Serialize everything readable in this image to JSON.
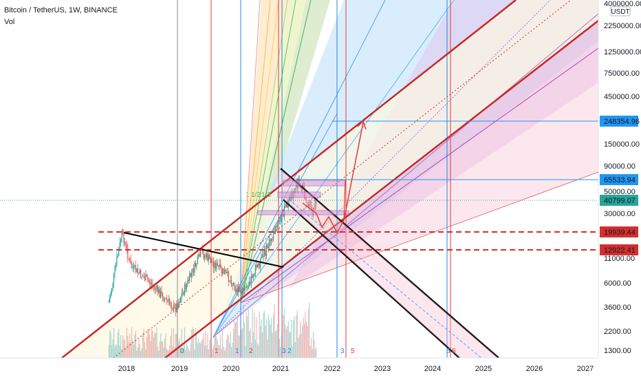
{
  "header": {
    "symbol_title": "Bitcoin / TetherUS, 1W, BINANCE",
    "indicator": "Vol"
  },
  "price_axis": {
    "currency_badge": "USDT",
    "ticks": [
      "4000000.00",
      "2250000.00",
      "1250000.00",
      "750000.00",
      "450000.00",
      "150000.00",
      "90000.00",
      "50000.00",
      "30000.00",
      "11000.00",
      "6000.00",
      "3600.00",
      "2200.00",
      "1300.00"
    ],
    "price_labels": [
      {
        "value": "248354.96",
        "color": "#2196f3"
      },
      {
        "value": "65533.94",
        "color": "#2196f3"
      },
      {
        "value": "40799.07",
        "color": "#26a69a"
      },
      {
        "value": "19939.44",
        "color": "#d32f2f"
      },
      {
        "value": "12922.41",
        "color": "#d32f2f"
      }
    ]
  },
  "time_axis": {
    "ticks": [
      "2018",
      "2019",
      "2020",
      "2021",
      "2022",
      "2023",
      "2024",
      "2025",
      "2026",
      "2027"
    ]
  },
  "cycle_markers": [
    {
      "label": "0",
      "color": "#555555"
    },
    {
      "label": "1",
      "color": "#e53935"
    },
    {
      "label": "1",
      "color": "#1e88e5"
    },
    {
      "label": "2",
      "color": "#e53935"
    },
    {
      "label": "3",
      "color": "#1e88e5"
    },
    {
      "label": "2",
      "color": "#1e88e5"
    },
    {
      "label": "3",
      "color": "#1e88e5"
    },
    {
      "label": "5",
      "color": "#e53935"
    },
    {
      "label": "5",
      "color": "#1e88e5"
    },
    {
      "label": "8",
      "color": "#e53935"
    }
  ],
  "fan_labels": [
    "1",
    "1/2",
    "1/3"
  ],
  "chart_data": {
    "type": "line",
    "title": "Bitcoin / TetherUS, 1W, BINANCE",
    "y_scale": "log",
    "x_range": [
      "2017",
      "2027"
    ],
    "y_range": [
      1000,
      4000000
    ],
    "candles_approx": [
      {
        "date": "2017-09",
        "price": 4000
      },
      {
        "date": "2017-12",
        "price": 19500
      },
      {
        "date": "2018-02",
        "price": 9000
      },
      {
        "date": "2018-06",
        "price": 6500
      },
      {
        "date": "2018-12",
        "price": 3400
      },
      {
        "date": "2019-06",
        "price": 12500
      },
      {
        "date": "2019-12",
        "price": 7200
      },
      {
        "date": "2020-03",
        "price": 4800
      },
      {
        "date": "2020-08",
        "price": 11500
      },
      {
        "date": "2020-12",
        "price": 28000
      },
      {
        "date": "2021-04",
        "price": 64000
      },
      {
        "date": "2021-07",
        "price": 31000
      },
      {
        "date": "2021-08",
        "price": 40800
      }
    ],
    "horizontal_levels": [
      {
        "value": 248354.96,
        "style": "solid",
        "color": "#2196f3"
      },
      {
        "value": 65533.94,
        "style": "solid",
        "color": "#2196f3"
      },
      {
        "value": 40799.07,
        "style": "dotted",
        "color": "#26a69a"
      },
      {
        "value": 19939.44,
        "style": "dashed",
        "color": "#d32f2f"
      },
      {
        "value": 12922.41,
        "style": "dashed",
        "color": "#d32f2f"
      }
    ]
  }
}
